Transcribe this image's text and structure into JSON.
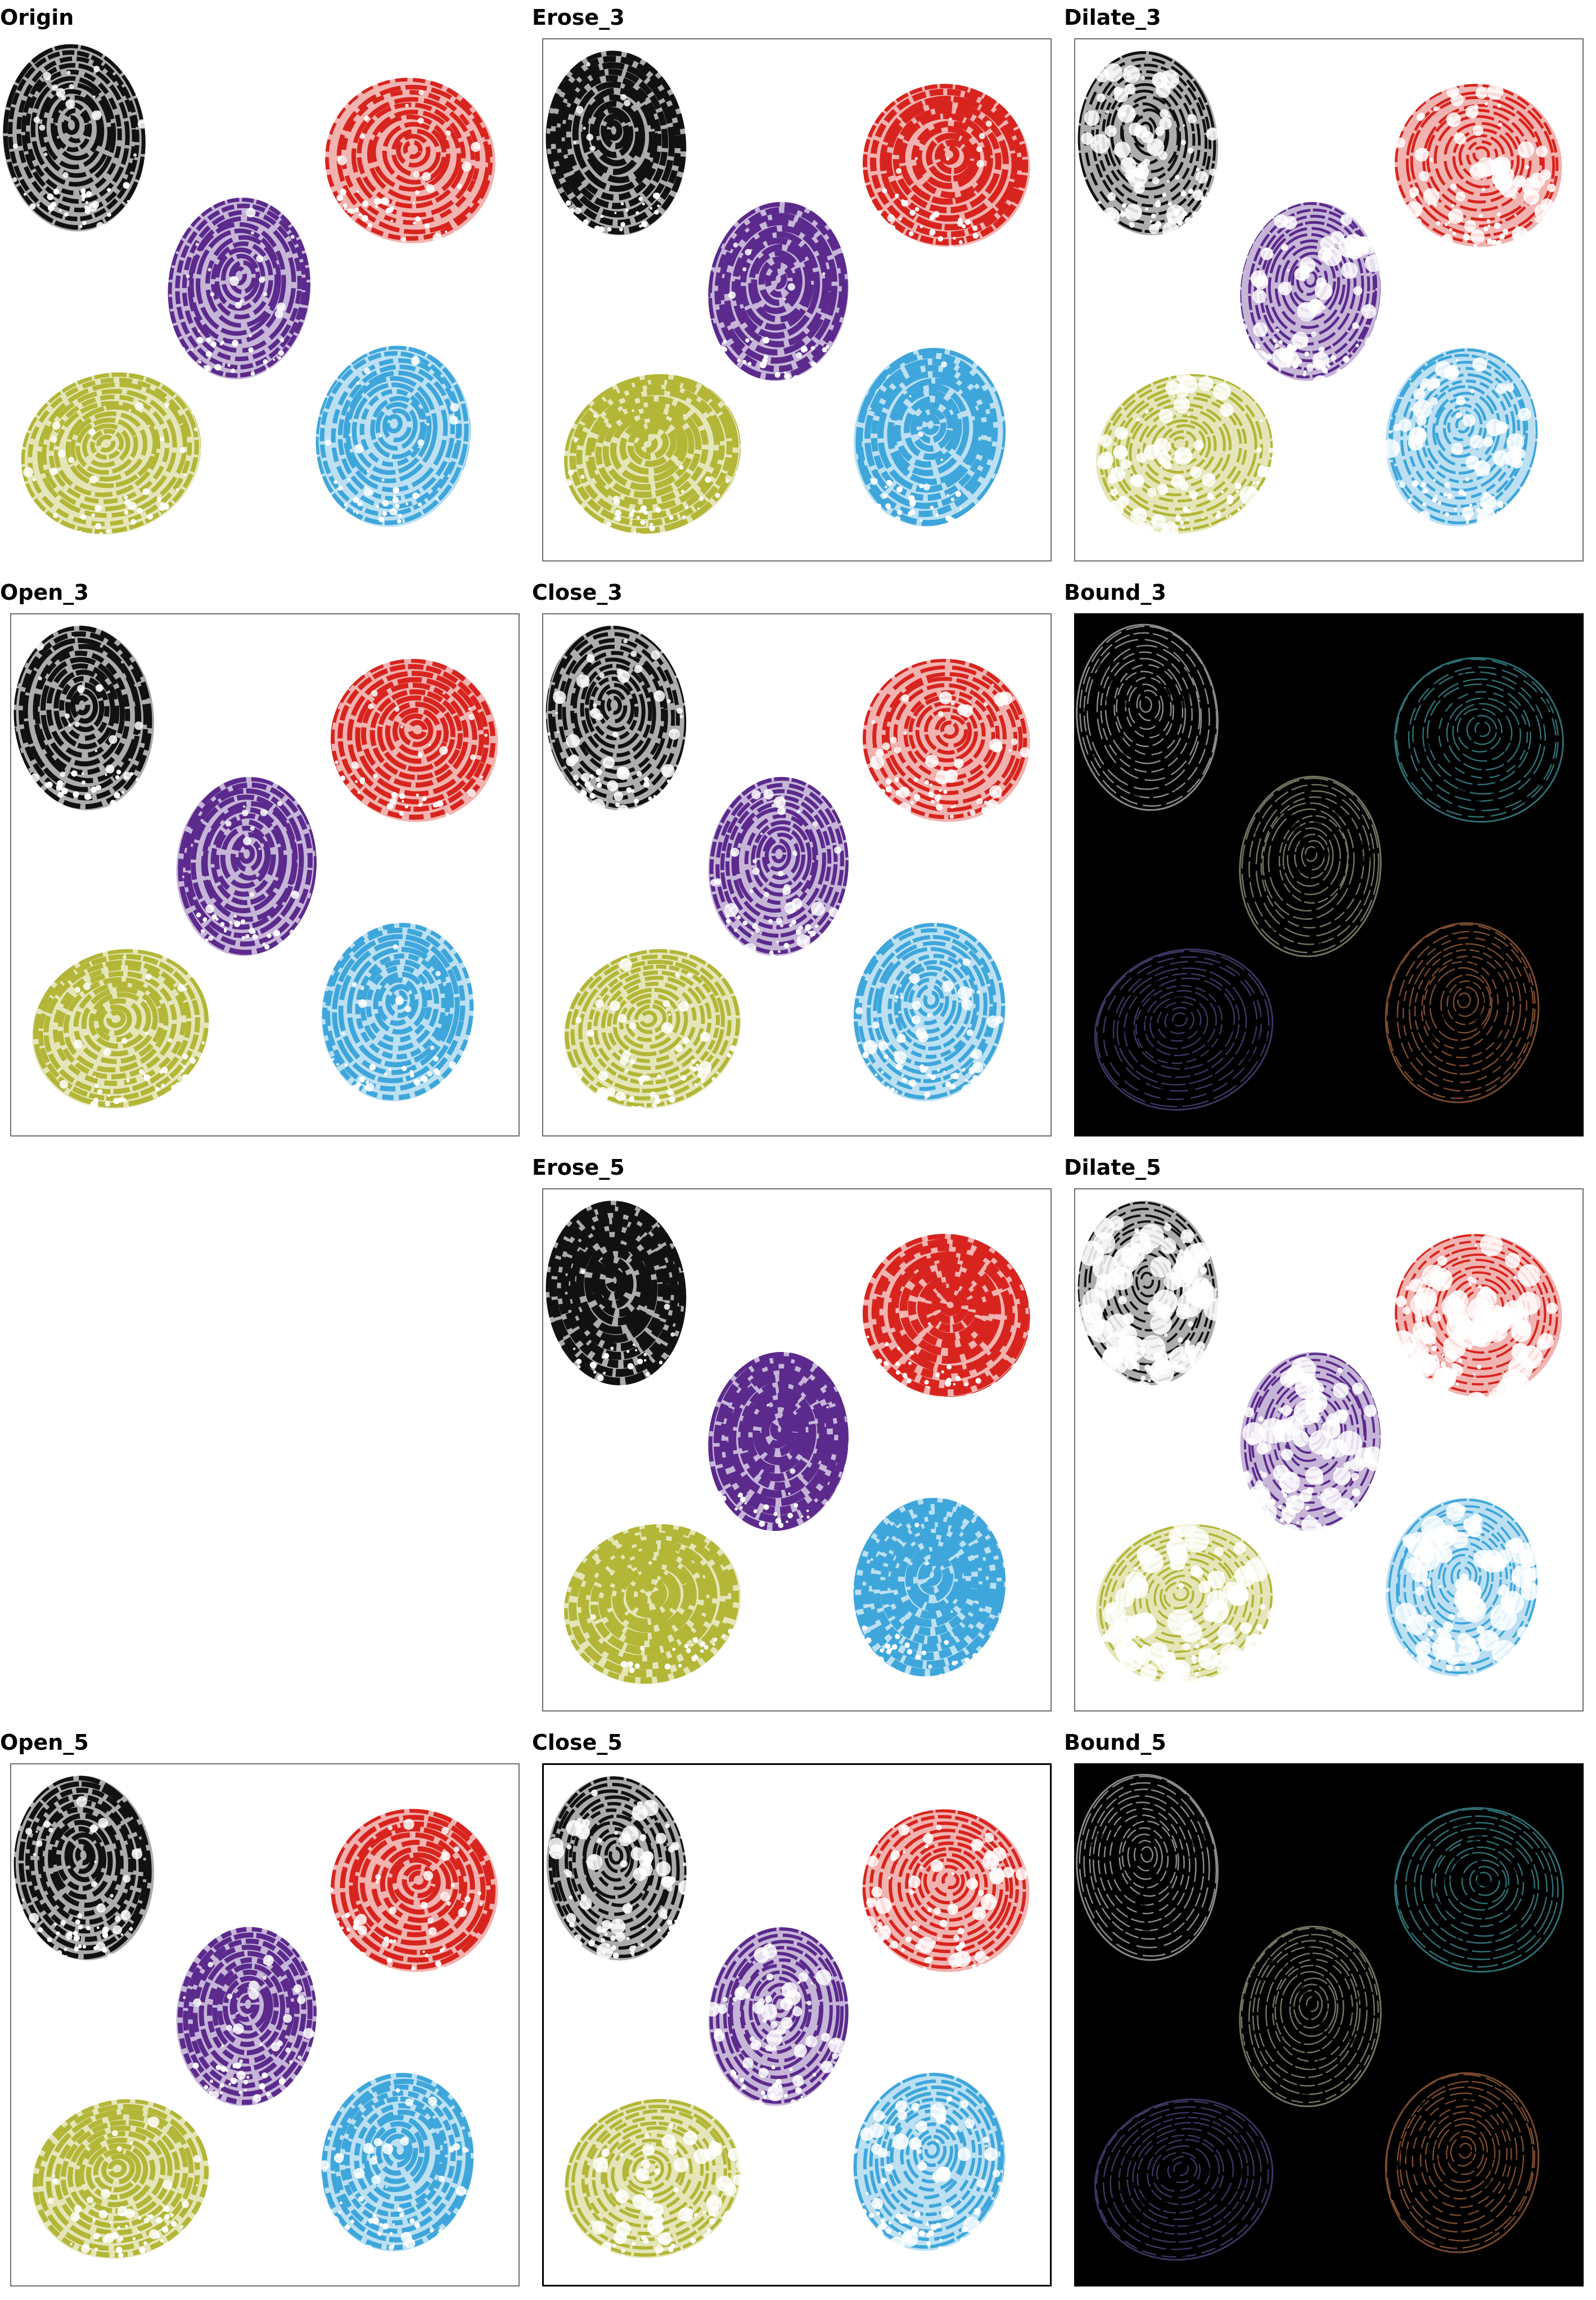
{
  "figure": {
    "panels": [
      {
        "title": "Origin",
        "style": "light",
        "variant": "origin"
      },
      {
        "title": "Erose_3",
        "style": "light",
        "variant": "erose3"
      },
      {
        "title": "Dilate_3",
        "style": "light",
        "variant": "dilate3"
      },
      {
        "title": "Open_3",
        "style": "light",
        "variant": "open3"
      },
      {
        "title": "Close_3",
        "style": "light",
        "variant": "close3"
      },
      {
        "title": "Bound_3",
        "style": "dark",
        "variant": "bound3"
      },
      {
        "title": "",
        "style": "empty",
        "variant": "empty"
      },
      {
        "title": "Erose_5",
        "style": "light",
        "variant": "erose5"
      },
      {
        "title": "Dilate_5",
        "style": "light",
        "variant": "dilate5"
      },
      {
        "title": "Open_5",
        "style": "light",
        "variant": "open5"
      },
      {
        "title": "Close_5",
        "style": "light",
        "variant": "close5"
      },
      {
        "title": "Bound_5",
        "style": "dark",
        "variant": "bound5"
      }
    ],
    "fingerprint_colors": {
      "black": "#111111",
      "red": "#d8241e",
      "purple": "#5b2a8c",
      "olive": "#b3b637",
      "blue": "#3ea6db"
    },
    "bound_colors": {
      "black": "#8a8a8a",
      "red": "#2e6f73",
      "purple": "#6f7560",
      "olive": "#3b3560",
      "blue": "#7a4a2e"
    }
  }
}
